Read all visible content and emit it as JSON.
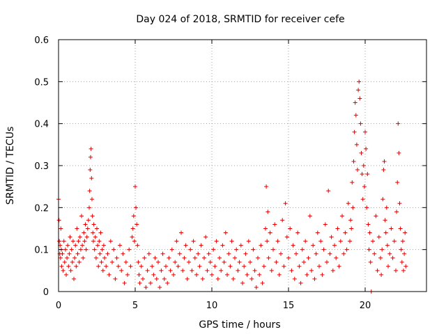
{
  "chart_data": {
    "type": "scatter",
    "title": "Day 024 of 2018, SRMTID for receiver cefe",
    "xlabel": "GPS time / hours",
    "ylabel": "SRMTID / TECUs",
    "xlim": [
      0,
      24
    ],
    "ylim": [
      0,
      0.6
    ],
    "xticks": [
      0,
      5,
      10,
      15,
      20
    ],
    "yticks": [
      0,
      0.1,
      0.2,
      0.3,
      0.4,
      0.5,
      0.6
    ],
    "xtick_labels": [
      "0",
      "5",
      "10",
      "15",
      "20"
    ],
    "ytick_labels": [
      "0",
      "0.1",
      "0.2",
      "0.3",
      "0.4",
      "0.5",
      "0.6"
    ],
    "grid": true,
    "marker": "+",
    "color": "#e00000",
    "series": [
      {
        "name": "SRMTID",
        "x": [
          0.0,
          0.03,
          0.05,
          0.08,
          0.1,
          0.13,
          0.15,
          0.18,
          0.2,
          0.25,
          0.3,
          0.35,
          0.4,
          0.45,
          0.5,
          0.55,
          0.6,
          0.65,
          0.7,
          0.75,
          0.8,
          0.85,
          0.9,
          0.95,
          1.0,
          1.05,
          1.1,
          1.15,
          1.2,
          1.25,
          1.3,
          1.35,
          1.4,
          1.45,
          1.5,
          1.55,
          1.6,
          1.65,
          1.7,
          1.75,
          1.8,
          1.85,
          1.9,
          1.95,
          2.0,
          2.03,
          2.06,
          2.09,
          2.12,
          2.15,
          2.18,
          2.21,
          2.24,
          2.27,
          2.3,
          2.35,
          2.4,
          2.45,
          2.5,
          2.55,
          2.6,
          2.65,
          2.7,
          2.75,
          2.8,
          2.85,
          2.9,
          2.95,
          3.0,
          3.1,
          3.2,
          3.3,
          3.4,
          3.5,
          3.6,
          3.7,
          3.8,
          3.9,
          4.0,
          4.1,
          4.2,
          4.3,
          4.4,
          4.5,
          4.6,
          4.7,
          4.8,
          4.85,
          4.9,
          4.95,
          5.0,
          5.05,
          5.1,
          5.15,
          5.2,
          5.25,
          5.3,
          5.4,
          5.5,
          5.6,
          5.7,
          5.8,
          5.9,
          6.0,
          6.1,
          6.2,
          6.3,
          6.4,
          6.5,
          6.6,
          6.7,
          6.8,
          6.9,
          7.0,
          7.1,
          7.2,
          7.3,
          7.4,
          7.5,
          7.6,
          7.7,
          7.8,
          7.9,
          8.0,
          8.1,
          8.2,
          8.3,
          8.4,
          8.5,
          8.6,
          8.7,
          8.8,
          8.9,
          9.0,
          9.1,
          9.2,
          9.3,
          9.4,
          9.5,
          9.6,
          9.7,
          9.8,
          9.9,
          10.0,
          10.1,
          10.2,
          10.3,
          10.4,
          10.5,
          10.6,
          10.7,
          10.8,
          10.9,
          11.0,
          11.1,
          11.2,
          11.3,
          11.4,
          11.5,
          11.6,
          11.7,
          11.8,
          11.9,
          12.0,
          12.1,
          12.2,
          12.3,
          12.4,
          12.5,
          12.6,
          12.7,
          12.8,
          12.9,
          13.0,
          13.1,
          13.2,
          13.3,
          13.4,
          13.5,
          13.55,
          13.6,
          13.65,
          13.7,
          13.8,
          13.9,
          14.0,
          14.1,
          14.2,
          14.3,
          14.4,
          14.5,
          14.6,
          14.7,
          14.8,
          14.9,
          15.0,
          15.1,
          15.2,
          15.3,
          15.4,
          15.5,
          15.6,
          15.7,
          15.8,
          15.9,
          16.0,
          16.1,
          16.2,
          16.3,
          16.4,
          16.5,
          16.6,
          16.7,
          16.8,
          16.9,
          17.0,
          17.1,
          17.2,
          17.3,
          17.4,
          17.5,
          17.6,
          17.7,
          17.8,
          17.9,
          18.0,
          18.1,
          18.2,
          18.3,
          18.4,
          18.5,
          18.6,
          18.7,
          18.8,
          18.9,
          19.0,
          19.05,
          19.1,
          19.15,
          19.2,
          19.25,
          19.3,
          19.35,
          19.4,
          19.45,
          19.5,
          19.55,
          19.6,
          19.65,
          19.7,
          19.75,
          19.8,
          19.85,
          19.9,
          19.95,
          20.0,
          20.05,
          20.1,
          20.15,
          20.2,
          20.25,
          20.3,
          20.35,
          20.4,
          20.5,
          20.6,
          20.7,
          20.8,
          20.9,
          21.0,
          21.05,
          21.1,
          21.15,
          21.2,
          21.25,
          21.3,
          21.35,
          21.4,
          21.45,
          21.5,
          21.6,
          21.7,
          21.8,
          21.9,
          22.0,
          22.05,
          22.1,
          22.15,
          22.2,
          22.25,
          22.3,
          22.35,
          22.4,
          22.45,
          22.5,
          22.55,
          22.6,
          22.65
        ],
        "y": [
          0.22,
          0.17,
          0.12,
          0.09,
          0.11,
          0.08,
          0.15,
          0.1,
          0.06,
          0.09,
          0.05,
          0.12,
          0.07,
          0.1,
          0.04,
          0.08,
          0.11,
          0.06,
          0.09,
          0.13,
          0.05,
          0.1,
          0.07,
          0.12,
          0.03,
          0.08,
          0.11,
          0.06,
          0.15,
          0.09,
          0.12,
          0.07,
          0.13,
          0.1,
          0.18,
          0.11,
          0.08,
          0.14,
          0.12,
          0.16,
          0.1,
          0.13,
          0.15,
          0.17,
          0.2,
          0.24,
          0.29,
          0.32,
          0.34,
          0.27,
          0.22,
          0.18,
          0.14,
          0.12,
          0.16,
          0.1,
          0.13,
          0.08,
          0.15,
          0.11,
          0.06,
          0.12,
          0.09,
          0.14,
          0.07,
          0.1,
          0.05,
          0.11,
          0.08,
          0.06,
          0.09,
          0.04,
          0.12,
          0.07,
          0.1,
          0.03,
          0.08,
          0.06,
          0.11,
          0.05,
          0.09,
          0.02,
          0.07,
          0.04,
          0.1,
          0.06,
          0.13,
          0.15,
          0.18,
          0.12,
          0.25,
          0.2,
          0.16,
          0.11,
          0.07,
          0.04,
          0.02,
          0.06,
          0.03,
          0.08,
          0.01,
          0.05,
          0.09,
          0.02,
          0.06,
          0.04,
          0.08,
          0.03,
          0.07,
          0.01,
          0.05,
          0.09,
          0.03,
          0.06,
          0.02,
          0.08,
          0.05,
          0.1,
          0.04,
          0.07,
          0.12,
          0.06,
          0.09,
          0.14,
          0.05,
          0.08,
          0.11,
          0.03,
          0.07,
          0.1,
          0.05,
          0.12,
          0.08,
          0.04,
          0.09,
          0.06,
          0.11,
          0.03,
          0.08,
          0.13,
          0.05,
          0.09,
          0.07,
          0.04,
          0.1,
          0.06,
          0.12,
          0.03,
          0.08,
          0.05,
          0.11,
          0.07,
          0.14,
          0.04,
          0.09,
          0.06,
          0.12,
          0.03,
          0.08,
          0.1,
          0.05,
          0.07,
          0.11,
          0.02,
          0.06,
          0.09,
          0.04,
          0.12,
          0.07,
          0.03,
          0.1,
          0.05,
          0.01,
          0.08,
          0.04,
          0.11,
          0.02,
          0.06,
          0.15,
          0.25,
          0.12,
          0.19,
          0.08,
          0.14,
          0.05,
          0.1,
          0.16,
          0.07,
          0.12,
          0.04,
          0.09,
          0.17,
          0.06,
          0.21,
          0.13,
          0.08,
          0.15,
          0.05,
          0.11,
          0.03,
          0.09,
          0.14,
          0.06,
          0.02,
          0.1,
          0.07,
          0.12,
          0.04,
          0.08,
          0.18,
          0.05,
          0.11,
          0.03,
          0.09,
          0.14,
          0.06,
          0.12,
          0.04,
          0.1,
          0.16,
          0.07,
          0.24,
          0.09,
          0.13,
          0.05,
          0.11,
          0.08,
          0.15,
          0.06,
          0.12,
          0.18,
          0.09,
          0.14,
          0.1,
          0.21,
          0.12,
          0.17,
          0.15,
          0.26,
          0.2,
          0.31,
          0.38,
          0.45,
          0.42,
          0.35,
          0.29,
          0.48,
          0.5,
          0.46,
          0.4,
          0.33,
          0.28,
          0.22,
          0.3,
          0.25,
          0.38,
          0.34,
          0.2,
          0.28,
          0.16,
          0.1,
          0.14,
          0.07,
          0.0,
          0.12,
          0.09,
          0.18,
          0.05,
          0.13,
          0.08,
          0.04,
          0.1,
          0.22,
          0.29,
          0.31,
          0.17,
          0.14,
          0.2,
          0.11,
          0.06,
          0.09,
          0.15,
          0.08,
          0.12,
          0.05,
          0.19,
          0.26,
          0.4,
          0.33,
          0.21,
          0.15,
          0.1,
          0.07,
          0.12,
          0.05,
          0.09,
          0.14,
          0.06
        ]
      }
    ]
  }
}
